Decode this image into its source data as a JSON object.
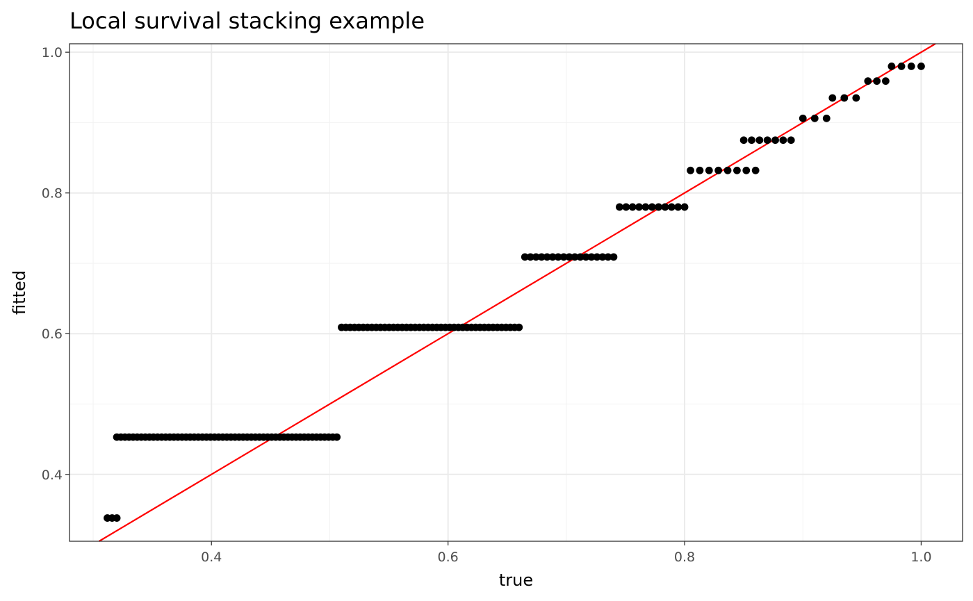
{
  "chart_data": {
    "type": "scatter",
    "title": "Local survival stacking example",
    "xlabel": "true",
    "ylabel": "fitted",
    "xlim": [
      0.28,
      1.035
    ],
    "ylim": [
      0.305,
      1.012
    ],
    "xticks": [
      0.4,
      0.6,
      0.8,
      1.0
    ],
    "xtick_labels": [
      "0.4",
      "0.6",
      "0.8",
      "1.0"
    ],
    "yticks": [
      0.4,
      0.6,
      0.8,
      1.0
    ],
    "ytick_labels": [
      "0.4",
      "0.6",
      "0.8",
      "1.0"
    ],
    "grid": true,
    "reference_line": {
      "intercept": 0,
      "slope": 1,
      "color": "#ff0000"
    },
    "point_color": "#000000",
    "step_groups": [
      {
        "fitted": 0.338,
        "x_from": 0.312,
        "x_to": 0.32,
        "count": 3
      },
      {
        "fitted": 0.453,
        "x_from": 0.32,
        "x_to": 0.506,
        "count": 55
      },
      {
        "fitted": 0.609,
        "x_from": 0.51,
        "x_to": 0.66,
        "count": 42
      },
      {
        "fitted": 0.709,
        "x_from": 0.665,
        "x_to": 0.74,
        "count": 17
      },
      {
        "fitted": 0.78,
        "x_from": 0.745,
        "x_to": 0.8,
        "count": 11
      },
      {
        "fitted": 0.832,
        "x_from": 0.805,
        "x_to": 0.86,
        "count": 8
      },
      {
        "fitted": 0.875,
        "x_from": 0.85,
        "x_to": 0.89,
        "count": 7
      },
      {
        "fitted": 0.906,
        "x_from": 0.9,
        "x_to": 0.92,
        "count": 3
      },
      {
        "fitted": 0.935,
        "x_from": 0.925,
        "x_to": 0.945,
        "count": 3
      },
      {
        "fitted": 0.959,
        "x_from": 0.955,
        "x_to": 0.97,
        "count": 3
      },
      {
        "fitted": 0.98,
        "x_from": 0.975,
        "x_to": 1.0,
        "count": 4
      }
    ]
  }
}
